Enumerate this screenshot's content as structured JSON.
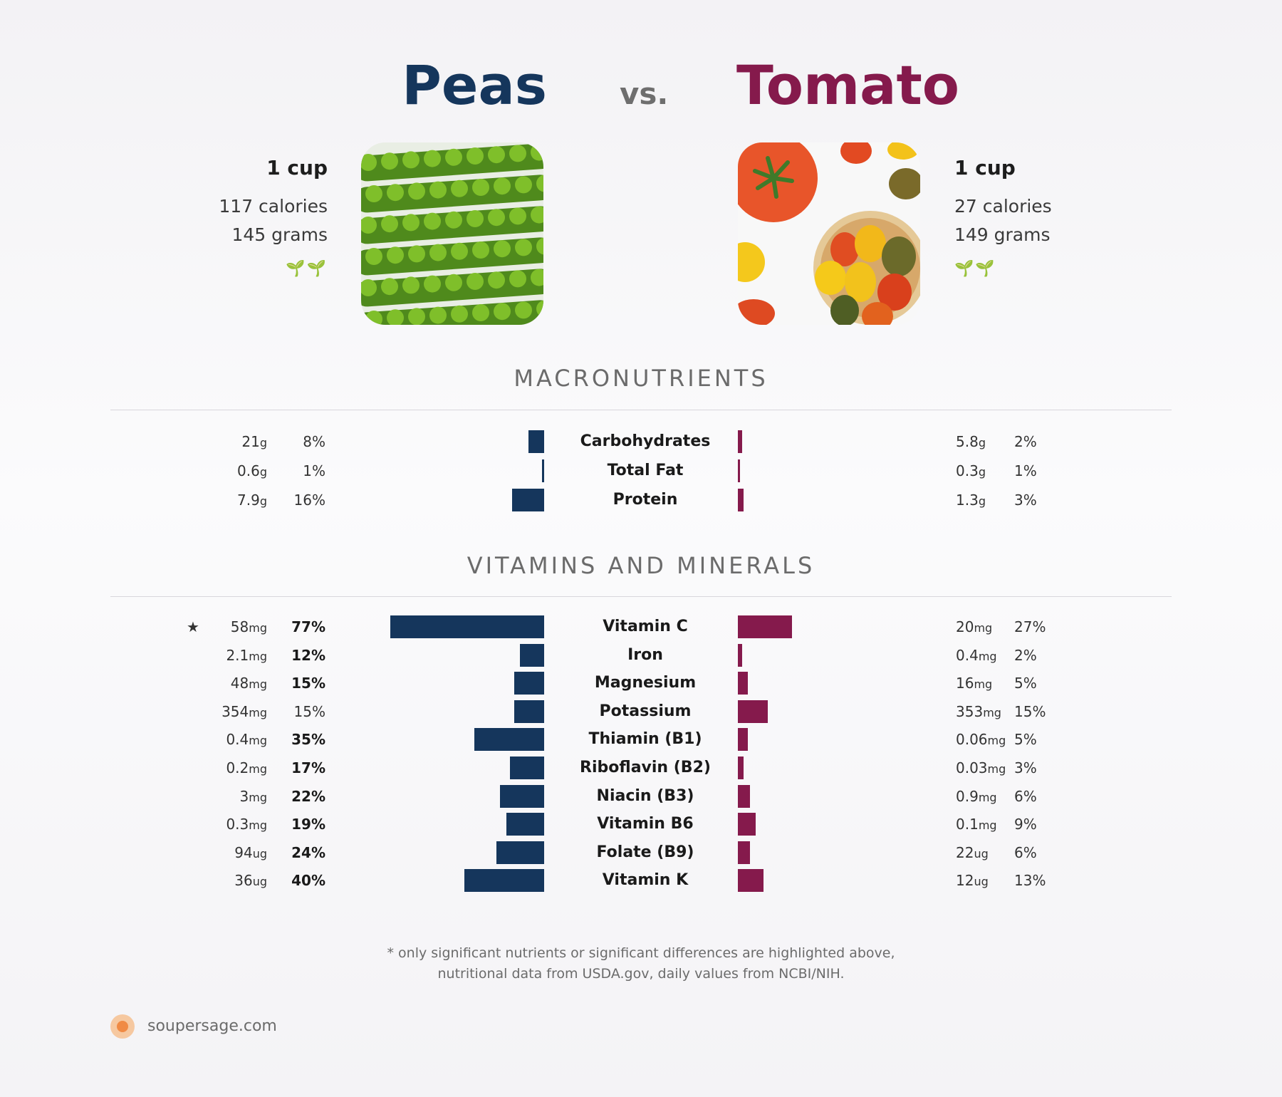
{
  "food_a": {
    "name": "Peas",
    "serving": "1 cup",
    "calories": "117 calories",
    "grams": "145 grams",
    "sprouts": "🌱🌱",
    "color": "#15365c"
  },
  "food_b": {
    "name": "Tomato",
    "serving": "1 cup",
    "calories": "27 calories",
    "grams": "149 grams",
    "sprouts": "🌱🌱",
    "color": "#851a4c"
  },
  "vs": "vs.",
  "sections": {
    "macro": "MACRONUTRIENTS",
    "vitamins": "VITAMINS AND MINERALS"
  },
  "footnote": {
    "line1": "* only significant nutrients or significant differences are highlighted above,",
    "line2": "nutritional data from USDA.gov, daily values from NCBI/NIH."
  },
  "brand": "soupersage.com",
  "chart_data": [
    {
      "type": "bar",
      "title": "MACRONUTRIENTS",
      "categories": [
        "Carbohydrates",
        "Total Fat",
        "Protein"
      ],
      "series": [
        {
          "name": "Peas",
          "amounts": [
            "21",
            "0.6",
            "7.9"
          ],
          "units": [
            "g",
            "g",
            "g"
          ],
          "values": [
            8,
            1,
            16
          ],
          "labels": [
            "8%",
            "1%",
            "16%"
          ],
          "bold": [
            false,
            false,
            false
          ]
        },
        {
          "name": "Tomato",
          "amounts": [
            "5.8",
            "0.3",
            "1.3"
          ],
          "units": [
            "g",
            "g",
            "g"
          ],
          "values": [
            2,
            1,
            3
          ],
          "labels": [
            "2%",
            "1%",
            "3%"
          ],
          "bold": [
            false,
            false,
            false
          ]
        }
      ]
    },
    {
      "type": "bar",
      "title": "VITAMINS AND MINERALS",
      "categories": [
        "Vitamin C",
        "Iron",
        "Magnesium",
        "Potassium",
        "Thiamin (B1)",
        "Riboflavin (B2)",
        "Niacin (B3)",
        "Vitamin B6",
        "Folate (B9)",
        "Vitamin K"
      ],
      "starred": [
        "Vitamin C"
      ],
      "series": [
        {
          "name": "Peas",
          "amounts": [
            "58",
            "2.1",
            "48",
            "354",
            "0.4",
            "0.2",
            "3",
            "0.3",
            "94",
            "36"
          ],
          "units": [
            "mg",
            "mg",
            "mg",
            "mg",
            "mg",
            "mg",
            "mg",
            "mg",
            "ug",
            "ug"
          ],
          "values": [
            77,
            12,
            15,
            15,
            35,
            17,
            22,
            19,
            24,
            40
          ],
          "labels": [
            "77%",
            "12%",
            "15%",
            "15%",
            "35%",
            "17%",
            "22%",
            "19%",
            "24%",
            "40%"
          ],
          "bold": [
            true,
            true,
            true,
            false,
            true,
            true,
            true,
            true,
            true,
            true
          ]
        },
        {
          "name": "Tomato",
          "amounts": [
            "20",
            "0.4",
            "16",
            "353",
            "0.06",
            "0.03",
            "0.9",
            "0.1",
            "22",
            "12"
          ],
          "units": [
            "mg",
            "mg",
            "mg",
            "mg",
            "mg",
            "mg",
            "mg",
            "mg",
            "ug",
            "ug"
          ],
          "values": [
            27,
            2,
            5,
            15,
            5,
            3,
            6,
            9,
            6,
            13
          ],
          "labels": [
            "27%",
            "2%",
            "5%",
            "15%",
            "5%",
            "3%",
            "6%",
            "9%",
            "6%",
            "13%"
          ],
          "bold": [
            false,
            false,
            false,
            false,
            false,
            false,
            false,
            false,
            false,
            false
          ]
        }
      ]
    }
  ]
}
